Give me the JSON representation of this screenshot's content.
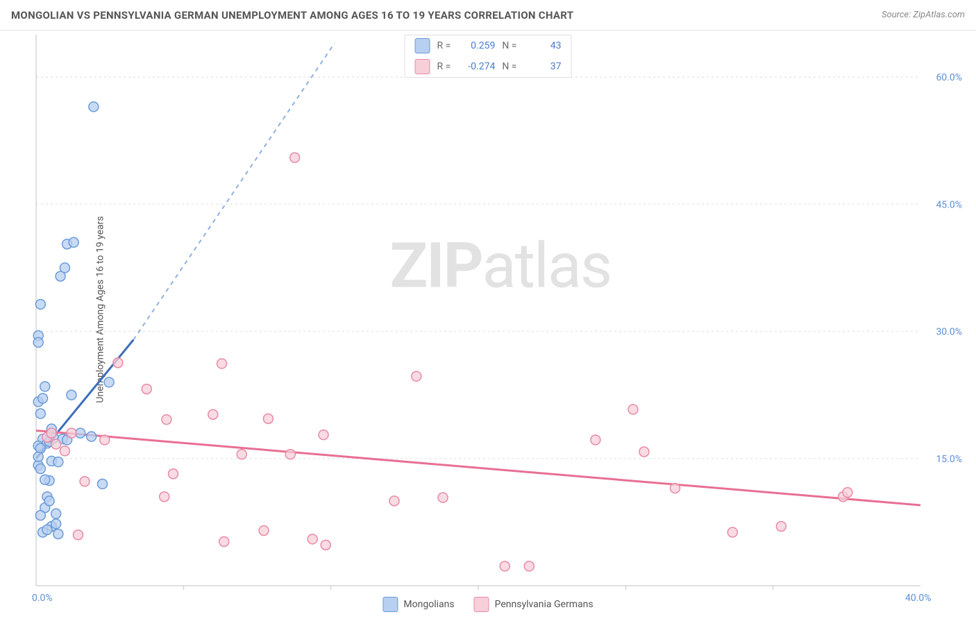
{
  "header": {
    "title": "MONGOLIAN VS PENNSYLVANIA GERMAN UNEMPLOYMENT AMONG AGES 16 TO 19 YEARS CORRELATION CHART",
    "source": "Source: ZipAtlas.com"
  },
  "watermark": {
    "zip": "ZIP",
    "atlas": "atlas"
  },
  "y_axis": {
    "label": "Unemployment Among Ages 16 to 19 years",
    "ticks": [
      15.0,
      30.0,
      45.0,
      60.0
    ],
    "format_suffix": "%"
  },
  "x_axis": {
    "ticks": [
      0.0,
      40.0
    ],
    "format_suffix": "%"
  },
  "chart": {
    "type": "scatter",
    "background_color": "#ffffff",
    "grid_color": "#e8e8e8",
    "axis_color": "#d5d5d5",
    "xlim": [
      0,
      40
    ],
    "ylim": [
      0,
      65
    ],
    "x_minor_ticks": [
      6.67,
      13.33,
      20,
      26.67,
      33.33
    ],
    "series": [
      {
        "id": "mongolians",
        "label": "Mongolians",
        "color_fill": "#b7cff0",
        "color_stroke": "#6a9ad9",
        "marker_radius": 7,
        "R": 0.259,
        "N": 43,
        "trend": {
          "x1": 0,
          "y1": 15.0,
          "x2": 4.4,
          "y2": 29.0,
          "extend_x2": 13.5,
          "extend_y2": 64.0,
          "color": "#3d6db8",
          "dash_color": "#8fb0de"
        },
        "points": [
          [
            0.1,
            29.5
          ],
          [
            0.1,
            28.7
          ],
          [
            0.2,
            33.2
          ],
          [
            0.4,
            23.5
          ],
          [
            0.1,
            21.7
          ],
          [
            0.3,
            22.1
          ],
          [
            0.2,
            20.3
          ],
          [
            0.3,
            17.3
          ],
          [
            0.1,
            14.2
          ],
          [
            0.1,
            16.5
          ],
          [
            0.5,
            16.8
          ],
          [
            0.2,
            16.2
          ],
          [
            0.7,
            18.5
          ],
          [
            0.6,
            17.0
          ],
          [
            0.1,
            15.2
          ],
          [
            0.2,
            13.8
          ],
          [
            0.6,
            12.4
          ],
          [
            0.4,
            12.5
          ],
          [
            0.7,
            14.7
          ],
          [
            0.8,
            17.4
          ],
          [
            1.2,
            17.3
          ],
          [
            1.4,
            17.2
          ],
          [
            1.6,
            22.5
          ],
          [
            2.0,
            18.0
          ],
          [
            1.0,
            14.6
          ],
          [
            2.5,
            17.6
          ],
          [
            3.3,
            24.0
          ],
          [
            3.0,
            12.0
          ],
          [
            0.4,
            9.2
          ],
          [
            0.5,
            10.5
          ],
          [
            0.6,
            10.0
          ],
          [
            0.2,
            8.3
          ],
          [
            0.9,
            8.5
          ],
          [
            0.7,
            7.0
          ],
          [
            0.3,
            6.3
          ],
          [
            0.5,
            6.6
          ],
          [
            0.9,
            7.3
          ],
          [
            1.0,
            6.1
          ],
          [
            1.4,
            40.3
          ],
          [
            1.7,
            40.5
          ],
          [
            1.3,
            37.5
          ],
          [
            1.1,
            36.5
          ],
          [
            2.6,
            56.5
          ]
        ]
      },
      {
        "id": "pennsylvania-germans",
        "label": "Pennsylvania Germans",
        "color_fill": "#f6cfd9",
        "color_stroke": "#e88aa5",
        "marker_radius": 7,
        "R": -0.274,
        "N": 37,
        "trend": {
          "x1": 0,
          "y1": 18.3,
          "x2": 40,
          "y2": 9.5,
          "color": "#e86f93"
        },
        "points": [
          [
            0.5,
            17.5
          ],
          [
            0.7,
            18.0
          ],
          [
            0.9,
            16.7
          ],
          [
            1.3,
            15.9
          ],
          [
            1.6,
            18.0
          ],
          [
            1.9,
            6.0
          ],
          [
            2.2,
            12.3
          ],
          [
            3.1,
            17.2
          ],
          [
            3.7,
            26.3
          ],
          [
            5.0,
            23.2
          ],
          [
            5.9,
            19.6
          ],
          [
            5.8,
            10.5
          ],
          [
            6.2,
            13.2
          ],
          [
            8.0,
            20.2
          ],
          [
            8.4,
            26.2
          ],
          [
            8.5,
            5.2
          ],
          [
            9.3,
            15.5
          ],
          [
            10.5,
            19.7
          ],
          [
            10.3,
            6.5
          ],
          [
            11.5,
            15.5
          ],
          [
            11.7,
            50.5
          ],
          [
            12.5,
            5.5
          ],
          [
            13.0,
            17.8
          ],
          [
            13.1,
            4.8
          ],
          [
            16.2,
            10.0
          ],
          [
            17.2,
            24.7
          ],
          [
            18.4,
            10.4
          ],
          [
            21.2,
            2.3
          ],
          [
            22.3,
            2.3
          ],
          [
            25.3,
            17.2
          ],
          [
            27.0,
            20.8
          ],
          [
            27.5,
            15.8
          ],
          [
            28.9,
            11.5
          ],
          [
            31.5,
            6.3
          ],
          [
            33.7,
            7.0
          ],
          [
            36.5,
            10.5
          ],
          [
            36.7,
            11.0
          ]
        ]
      }
    ]
  },
  "legend_top": {
    "rows": [
      {
        "swatch_fill": "#b7cff0",
        "swatch_stroke": "#6a9ad9",
        "r_label": "R =",
        "r_value": "0.259",
        "n_label": "N =",
        "n_value": "43"
      },
      {
        "swatch_fill": "#f6cfd9",
        "swatch_stroke": "#e88aa5",
        "r_label": "R =",
        "r_value": "-0.274",
        "n_label": "N =",
        "n_value": "37"
      }
    ]
  }
}
